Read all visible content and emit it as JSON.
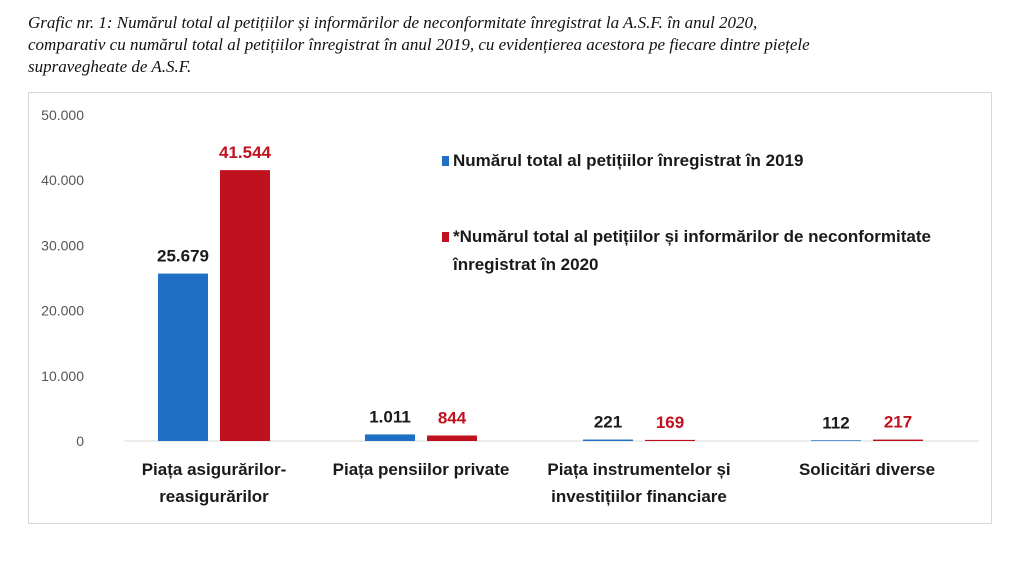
{
  "caption": {
    "line1": "Grafic nr. 1: Numărul total al petițiilor și informărilor de neconformitate înregistrat la A.S.F. în anul 2020,",
    "line2": "comparativ cu numărul total al petițiilor înregistrat în anul 2019, cu evidențierea acestora pe fiecare dintre piețele",
    "line3": "supravegheate de A.S.F."
  },
  "chart_data": {
    "type": "bar",
    "categories": [
      [
        "Piața asigurărilor-",
        "reasigurărilor"
      ],
      [
        "Piața pensiilor private"
      ],
      [
        "Piața instrumentelor și",
        "investițiilor financiare"
      ],
      [
        "Solicitări diverse"
      ]
    ],
    "series": [
      {
        "name": [
          "Numărul total al petițiilor înregistrat în 2019"
        ],
        "values": [
          25679,
          1011,
          221,
          112
        ],
        "labels": [
          "25.679",
          "1.011",
          "221",
          "112"
        ],
        "color": "#1f6fc4",
        "label_color": "#1a1a1a"
      },
      {
        "name": [
          "*Numărul total al petițiilor și informărilor de neconformitate",
          "înregistrat în 2020"
        ],
        "values": [
          41544,
          844,
          169,
          217
        ],
        "labels": [
          "41.544",
          "844",
          "169",
          "217"
        ],
        "color": "#c0111f",
        "label_color": "#c0111f"
      }
    ],
    "ylim": [
      0,
      50000
    ],
    "yticks": [
      0,
      10000,
      20000,
      30000,
      40000,
      50000
    ],
    "ytick_labels": [
      "0",
      "10.000",
      "20.000",
      "30.000",
      "40.000",
      "50.000"
    ],
    "grid": false,
    "legend_position": "top-right"
  }
}
